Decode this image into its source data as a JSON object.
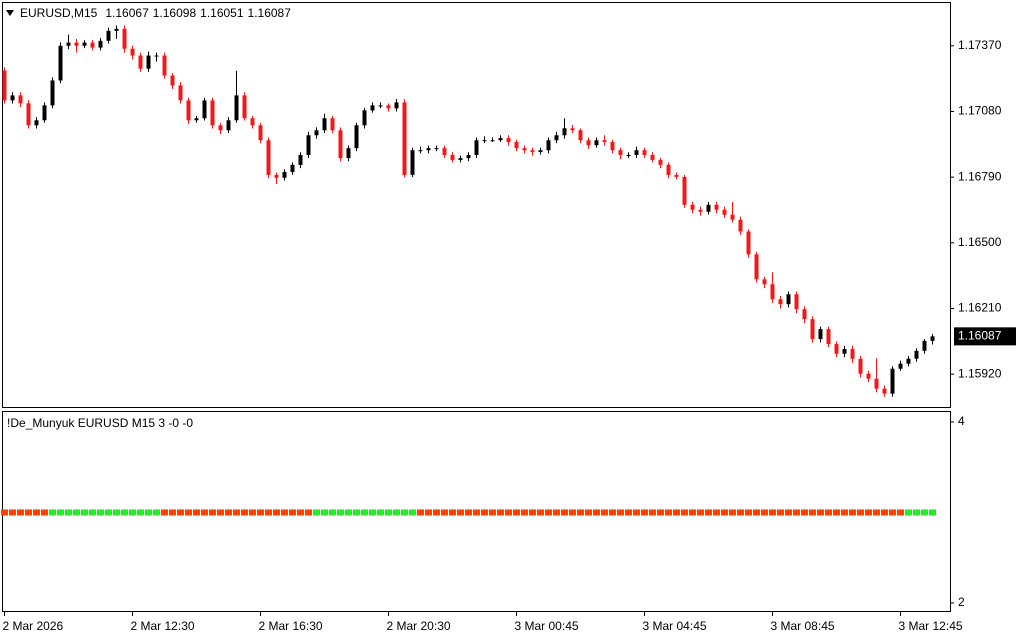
{
  "chart_data": {
    "type": "candlestick",
    "symbol": "EURUSD,M15",
    "up_color": "#000000",
    "down_color": "#f01818",
    "ylim": [
      1.15775,
      1.17559
    ],
    "yticks": [
      {
        "value": 1.1737,
        "label": "1.17370"
      },
      {
        "value": 1.1708,
        "label": "1.17080"
      },
      {
        "value": 1.1679,
        "label": "1.16790"
      },
      {
        "value": 1.165,
        "label": "1.16500"
      },
      {
        "value": 1.1621,
        "label": "1.16210"
      },
      {
        "value": 1.1592,
        "label": "1.15920"
      }
    ],
    "categories": [
      "2 Mar 2026",
      null,
      null,
      null,
      null,
      null,
      null,
      null,
      null,
      null,
      null,
      null,
      null,
      null,
      null,
      null,
      "2 Mar 12:30",
      null,
      null,
      null,
      null,
      null,
      null,
      null,
      null,
      null,
      null,
      null,
      null,
      null,
      null,
      null,
      "2 Mar 16:30",
      null,
      null,
      null,
      null,
      null,
      null,
      null,
      null,
      null,
      null,
      null,
      null,
      null,
      null,
      null,
      "2 Mar 20:30",
      null,
      null,
      null,
      null,
      null,
      null,
      null,
      null,
      null,
      null,
      null,
      null,
      null,
      null,
      null,
      "3 Mar 00:45",
      null,
      null,
      null,
      null,
      null,
      null,
      null,
      null,
      null,
      null,
      null,
      null,
      null,
      null,
      null,
      "3 Mar 04:45",
      null,
      null,
      null,
      null,
      null,
      null,
      null,
      null,
      null,
      null,
      null,
      null,
      null,
      null,
      null,
      "3 Mar 08:45",
      null,
      null,
      null,
      null,
      null,
      null,
      null,
      null,
      null,
      null,
      null,
      null,
      null,
      null,
      null,
      "3 Mar 12:45",
      null,
      null,
      null,
      null
    ],
    "candles": [
      [
        1.17261,
        1.17275,
        1.17115,
        1.17129
      ],
      [
        1.17129,
        1.17165,
        1.17115,
        1.17151
      ],
      [
        1.17151,
        1.17165,
        1.171,
        1.17116
      ],
      [
        1.17116,
        1.1713,
        1.17005,
        1.17019
      ],
      [
        1.17019,
        1.17055,
        1.17005,
        1.17041
      ],
      [
        1.17041,
        1.1712,
        1.1703,
        1.17107
      ],
      [
        1.17107,
        1.1723,
        1.17095,
        1.17217
      ],
      [
        1.17217,
        1.17385,
        1.17205,
        1.1737
      ],
      [
        1.1737,
        1.1742,
        1.17355,
        1.17384
      ],
      [
        1.17384,
        1.174,
        1.1734,
        1.1737
      ],
      [
        1.1737,
        1.17395,
        1.1736,
        1.17384
      ],
      [
        1.17384,
        1.17395,
        1.1735,
        1.17362
      ],
      [
        1.17362,
        1.17405,
        1.1735,
        1.17392
      ],
      [
        1.17392,
        1.1745,
        1.1738,
        1.17436
      ],
      [
        1.17436,
        1.1746,
        1.174,
        1.17445
      ],
      [
        1.17445,
        1.1746,
        1.1734,
        1.17357
      ],
      [
        1.17357,
        1.1737,
        1.1731,
        1.17327
      ],
      [
        1.17327,
        1.1734,
        1.17255,
        1.17269
      ],
      [
        1.17269,
        1.17345,
        1.17255,
        1.17327
      ],
      [
        1.17327,
        1.1734,
        1.173,
        1.17327
      ],
      [
        1.17327,
        1.1734,
        1.17225,
        1.17239
      ],
      [
        1.17239,
        1.1725,
        1.1718,
        1.17195
      ],
      [
        1.17195,
        1.1721,
        1.17115,
        1.17129
      ],
      [
        1.17129,
        1.1714,
        1.17025,
        1.17041
      ],
      [
        1.17041,
        1.1706,
        1.1703,
        1.1705
      ],
      [
        1.1705,
        1.1714,
        1.1704,
        1.17129
      ],
      [
        1.17129,
        1.1714,
        1.17005,
        1.17019
      ],
      [
        1.17019,
        1.1703,
        1.1698,
        1.16997
      ],
      [
        1.16997,
        1.17055,
        1.16985,
        1.17041
      ],
      [
        1.17041,
        1.1726,
        1.1703,
        1.17151
      ],
      [
        1.17151,
        1.17165,
        1.1704,
        1.1705
      ],
      [
        1.1705,
        1.1706,
        1.17005,
        1.17019
      ],
      [
        1.17019,
        1.1703,
        1.1694,
        1.16953
      ],
      [
        1.16953,
        1.16965,
        1.16785,
        1.168
      ],
      [
        1.168,
        1.1681,
        1.1676,
        1.16787
      ],
      [
        1.16787,
        1.16825,
        1.16775,
        1.16813
      ],
      [
        1.16813,
        1.16855,
        1.168,
        1.16844
      ],
      [
        1.16844,
        1.169,
        1.1683,
        1.16888
      ],
      [
        1.16888,
        1.1699,
        1.16875,
        1.16975
      ],
      [
        1.16975,
        1.1701,
        1.1696,
        1.16997
      ],
      [
        1.16997,
        1.1707,
        1.16985,
        1.1705
      ],
      [
        1.1705,
        1.1706,
        1.16985,
        1.16997
      ],
      [
        1.16997,
        1.1701,
        1.1686,
        1.16874
      ],
      [
        1.16874,
        1.1693,
        1.1686,
        1.16918
      ],
      [
        1.16918,
        1.1703,
        1.16905,
        1.17019
      ],
      [
        1.17019,
        1.17095,
        1.17005,
        1.17085
      ],
      [
        1.17085,
        1.1712,
        1.17075,
        1.17107
      ],
      [
        1.17107,
        1.1712,
        1.17095,
        1.17107
      ],
      [
        1.17107,
        1.17115,
        1.1708,
        1.17094
      ],
      [
        1.17094,
        1.17135,
        1.1708,
        1.1712
      ],
      [
        1.1712,
        1.17135,
        1.1679,
        1.168
      ],
      [
        1.168,
        1.1692,
        1.1679,
        1.16909
      ],
      [
        1.16909,
        1.16925,
        1.16895,
        1.16909
      ],
      [
        1.16909,
        1.1693,
        1.16895,
        1.16918
      ],
      [
        1.16918,
        1.1693,
        1.16905,
        1.16918
      ],
      [
        1.16918,
        1.1693,
        1.16875,
        1.16888
      ],
      [
        1.16888,
        1.169,
        1.16855,
        1.16866
      ],
      [
        1.16866,
        1.16885,
        1.16855,
        1.16874
      ],
      [
        1.16874,
        1.169,
        1.1686,
        1.16888
      ],
      [
        1.16888,
        1.16965,
        1.16875,
        1.16953
      ],
      [
        1.16953,
        1.1697,
        1.1694,
        1.16953
      ],
      [
        1.16953,
        1.16965,
        1.16945,
        1.16953
      ],
      [
        1.16953,
        1.16975,
        1.16945,
        1.16962
      ],
      [
        1.16962,
        1.16975,
        1.1693,
        1.16945
      ],
      [
        1.16945,
        1.16955,
        1.16905,
        1.16918
      ],
      [
        1.16918,
        1.1693,
        1.16895,
        1.16909
      ],
      [
        1.16909,
        1.1692,
        1.16885,
        1.16901
      ],
      [
        1.16901,
        1.1692,
        1.1689,
        1.16909
      ],
      [
        1.16909,
        1.16965,
        1.16895,
        1.16953
      ],
      [
        1.16953,
        1.1699,
        1.1694,
        1.16975
      ],
      [
        1.16975,
        1.1705,
        1.1696,
        1.17006
      ],
      [
        1.17006,
        1.1702,
        1.16985,
        1.16997
      ],
      [
        1.16997,
        1.17005,
        1.1694,
        1.16953
      ],
      [
        1.16953,
        1.16965,
        1.16915,
        1.16931
      ],
      [
        1.16931,
        1.16965,
        1.1692,
        1.16953
      ],
      [
        1.16953,
        1.16975,
        1.1693,
        1.16945
      ],
      [
        1.16945,
        1.16955,
        1.16895,
        1.16909
      ],
      [
        1.16909,
        1.1692,
        1.1687,
        1.16888
      ],
      [
        1.16888,
        1.169,
        1.16875,
        1.16888
      ],
      [
        1.16888,
        1.16925,
        1.16875,
        1.16909
      ],
      [
        1.16909,
        1.1692,
        1.16875,
        1.16888
      ],
      [
        1.16888,
        1.169,
        1.16855,
        1.16866
      ],
      [
        1.16866,
        1.16875,
        1.1683,
        1.16844
      ],
      [
        1.16844,
        1.16855,
        1.16785,
        1.168
      ],
      [
        1.168,
        1.1681,
        1.1678,
        1.16791
      ],
      [
        1.16791,
        1.168,
        1.16655,
        1.16668
      ],
      [
        1.16668,
        1.1668,
        1.1663,
        1.16646
      ],
      [
        1.16646,
        1.1666,
        1.1662,
        1.16637
      ],
      [
        1.16637,
        1.1668,
        1.16625,
        1.16668
      ],
      [
        1.16668,
        1.1668,
        1.1663,
        1.16646
      ],
      [
        1.16646,
        1.1666,
        1.1661,
        1.16624
      ],
      [
        1.16624,
        1.1668,
        1.1659,
        1.16602
      ],
      [
        1.16602,
        1.16615,
        1.16535,
        1.1655
      ],
      [
        1.1655,
        1.1656,
        1.16435,
        1.16449
      ],
      [
        1.16449,
        1.1646,
        1.16325,
        1.16339
      ],
      [
        1.16339,
        1.1635,
        1.163,
        1.16317
      ],
      [
        1.16317,
        1.1637,
        1.16235,
        1.16251
      ],
      [
        1.16251,
        1.16265,
        1.1621,
        1.16229
      ],
      [
        1.16229,
        1.16285,
        1.16215,
        1.16273
      ],
      [
        1.16273,
        1.16285,
        1.1619,
        1.16207
      ],
      [
        1.16207,
        1.1622,
        1.16145,
        1.16163
      ],
      [
        1.16163,
        1.16175,
        1.1606,
        1.16075
      ],
      [
        1.16075,
        1.1613,
        1.1606,
        1.16119
      ],
      [
        1.16119,
        1.1613,
        1.1604,
        1.16053
      ],
      [
        1.16053,
        1.16065,
        1.15995,
        1.1601
      ],
      [
        1.1601,
        1.16045,
        1.15995,
        1.16031
      ],
      [
        1.16031,
        1.16045,
        1.1597,
        1.15988
      ],
      [
        1.15988,
        1.16,
        1.15905,
        1.15922
      ],
      [
        1.15922,
        1.15935,
        1.15885,
        1.159
      ],
      [
        1.159,
        1.1599,
        1.1584,
        1.15856
      ],
      [
        1.15856,
        1.1587,
        1.1582,
        1.15834
      ],
      [
        1.15834,
        1.15955,
        1.1582,
        1.15944
      ],
      [
        1.15944,
        1.1598,
        1.15935,
        1.15966
      ],
      [
        1.15966,
        1.16,
        1.15955,
        1.15988
      ],
      [
        1.15988,
        1.16035,
        1.15975,
        1.16023
      ],
      [
        1.16023,
        1.16075,
        1.1601,
        1.16067
      ],
      [
        1.16067,
        1.16098,
        1.16051,
        1.16087
      ]
    ],
    "indicator": {
      "title": "!De_Munyuk EURUSD M15 3 -0 -0",
      "ylim": [
        1.9,
        4.11
      ],
      "yticks": [
        4,
        2
      ],
      "values": [
        3,
        3,
        3,
        3,
        3,
        3,
        3,
        3,
        3,
        3,
        3,
        3,
        3,
        3,
        3,
        3,
        3,
        3,
        3,
        3,
        3,
        3,
        3,
        3,
        3,
        3,
        3,
        3,
        3,
        3,
        3,
        3,
        3,
        3,
        3,
        3,
        3,
        3,
        3,
        3,
        3,
        3,
        3,
        3,
        3,
        3,
        3,
        3,
        3,
        3,
        3,
        3,
        3,
        3,
        3,
        3,
        3,
        3,
        3,
        3,
        3,
        3,
        3,
        3,
        3,
        3,
        3,
        3,
        3,
        3,
        3,
        3,
        3,
        3,
        3,
        3,
        3,
        3,
        3,
        3,
        3,
        3,
        3,
        3,
        3,
        3,
        3,
        3,
        3,
        3,
        3,
        3,
        3,
        3,
        3,
        3,
        3,
        3,
        3,
        3,
        3,
        3,
        3,
        3,
        3,
        3,
        3,
        3,
        3,
        3,
        3,
        3,
        3,
        3,
        3,
        3,
        3
      ],
      "colors": [
        "#ff4000",
        "#ff4000",
        "#ff4000",
        "#ff4000",
        "#ff4000",
        "#ff4000",
        "#22ee22",
        "#22ee22",
        "#22ee22",
        "#22ee22",
        "#22ee22",
        "#22ee22",
        "#22ee22",
        "#22ee22",
        "#22ee22",
        "#22ee22",
        "#22ee22",
        "#22ee22",
        "#22ee22",
        "#22ee22",
        "#ff4000",
        "#ff4000",
        "#ff4000",
        "#ff4000",
        "#ff4000",
        "#ff4000",
        "#ff4000",
        "#ff4000",
        "#ff4000",
        "#ff4000",
        "#ff4000",
        "#ff4000",
        "#ff4000",
        "#ff4000",
        "#ff4000",
        "#ff4000",
        "#ff4000",
        "#ff4000",
        "#ff4000",
        "#22ee22",
        "#22ee22",
        "#22ee22",
        "#22ee22",
        "#22ee22",
        "#22ee22",
        "#22ee22",
        "#22ee22",
        "#22ee22",
        "#22ee22",
        "#22ee22",
        "#22ee22",
        "#22ee22",
        "#ff4000",
        "#ff4000",
        "#ff4000",
        "#ff4000",
        "#ff4000",
        "#ff4000",
        "#ff4000",
        "#ff4000",
        "#ff4000",
        "#ff4000",
        "#ff4000",
        "#ff4000",
        "#ff4000",
        "#ff4000",
        "#ff4000",
        "#ff4000",
        "#ff4000",
        "#ff4000",
        "#ff4000",
        "#ff4000",
        "#ff4000",
        "#ff4000",
        "#ff4000",
        "#ff4000",
        "#ff4000",
        "#ff4000",
        "#ff4000",
        "#ff4000",
        "#ff4000",
        "#ff4000",
        "#ff4000",
        "#ff4000",
        "#ff4000",
        "#ff4000",
        "#ff4000",
        "#ff4000",
        "#ff4000",
        "#ff4000",
        "#ff4000",
        "#ff4000",
        "#ff4000",
        "#ff4000",
        "#ff4000",
        "#ff4000",
        "#ff4000",
        "#ff4000",
        "#ff4000",
        "#ff4000",
        "#ff4000",
        "#ff4000",
        "#ff4000",
        "#ff4000",
        "#ff4000",
        "#ff4000",
        "#ff4000",
        "#ff4000",
        "#ff4000",
        "#ff4000",
        "#ff4000",
        "#ff4000",
        "#ff4000",
        "#22ee22",
        "#22ee22",
        "#22ee22",
        "#22ee22"
      ]
    }
  }
}
